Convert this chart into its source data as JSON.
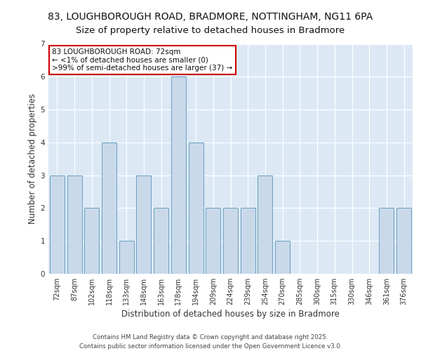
{
  "title_line1": "83, LOUGHBOROUGH ROAD, BRADMORE, NOTTINGHAM, NG11 6PA",
  "title_line2": "Size of property relative to detached houses in Bradmore",
  "xlabel": "Distribution of detached houses by size in Bradmore",
  "ylabel": "Number of detached properties",
  "categories": [
    "72sqm",
    "87sqm",
    "102sqm",
    "118sqm",
    "133sqm",
    "148sqm",
    "163sqm",
    "178sqm",
    "194sqm",
    "209sqm",
    "224sqm",
    "239sqm",
    "254sqm",
    "270sqm",
    "285sqm",
    "300sqm",
    "315sqm",
    "330sqm",
    "346sqm",
    "361sqm",
    "376sqm"
  ],
  "values": [
    3,
    3,
    2,
    4,
    1,
    3,
    2,
    6,
    4,
    2,
    2,
    2,
    3,
    1,
    0,
    0,
    0,
    0,
    0,
    2,
    2
  ],
  "bar_color": "#c9d9ea",
  "bar_edge_color": "#6a9fc0",
  "background_color": "#dce9f5",
  "grid_color": "#ffffff",
  "ylim": [
    0,
    7
  ],
  "yticks": [
    0,
    1,
    2,
    3,
    4,
    5,
    6,
    7
  ],
  "annotation_text": "83 LOUGHBOROUGH ROAD: 72sqm\n← <1% of detached houses are smaller (0)\n>99% of semi-detached houses are larger (37) →",
  "annotation_box_color": "#ffffff",
  "annotation_box_edge_color": "#cc0000",
  "footer_line1": "Contains HM Land Registry data © Crown copyright and database right 2025.",
  "footer_line2": "Contains public sector information licensed under the Open Government Licence v3.0.",
  "title_fontsize": 10,
  "subtitle_fontsize": 9.5,
  "tick_fontsize": 7,
  "ylabel_fontsize": 8.5,
  "xlabel_fontsize": 8.5,
  "annotation_fontsize": 7.5,
  "footer_fontsize": 6.2
}
